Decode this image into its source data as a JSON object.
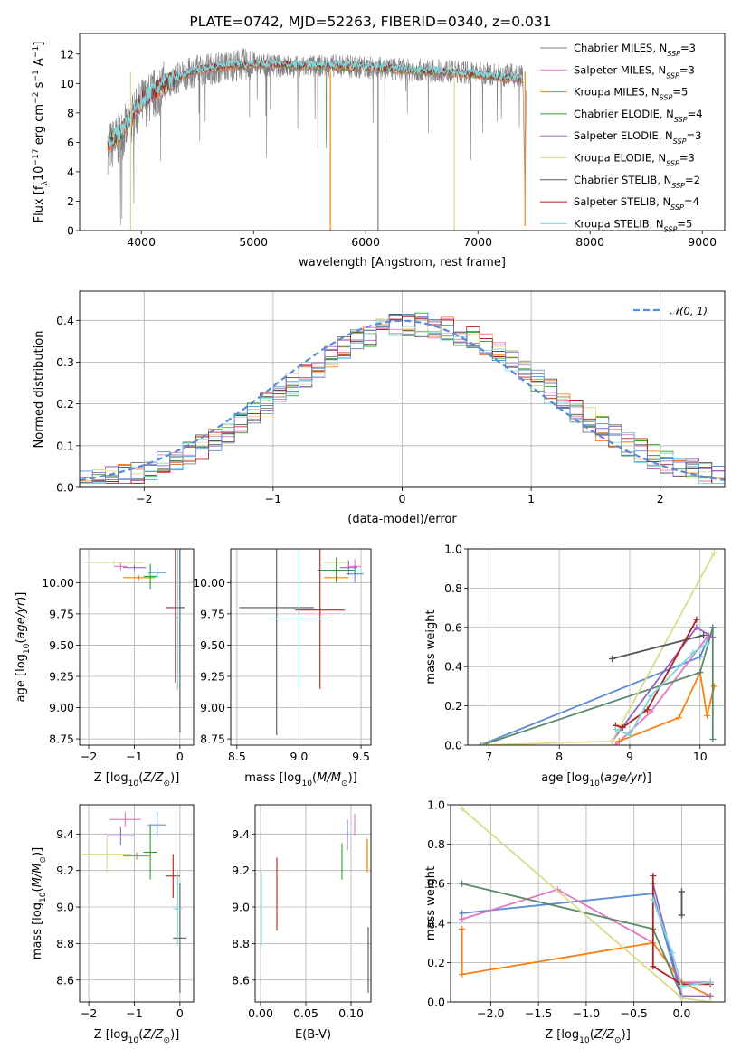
{
  "figure": {
    "title": "PLATE=0742, MJD=52263, FIBERID=0340, z=0.031"
  },
  "series_styles": [
    {
      "name": "Chabrier MILES",
      "n_ssp": "3",
      "color": "#7f7f7f"
    },
    {
      "name": "Salpeter MILES",
      "n_ssp": "3",
      "color": "#e377c2"
    },
    {
      "name": "Kroupa MILES",
      "n_ssp": "5",
      "color": "#ff7f0e"
    },
    {
      "name": "Chabrier ELODIE",
      "n_ssp": "4",
      "color": "#2ca02c"
    },
    {
      "name": "Salpeter ELODIE",
      "n_ssp": "3",
      "color": "#9467bd"
    },
    {
      "name": "Kroupa ELODIE",
      "n_ssp": "3",
      "color": "#dbdb8d"
    },
    {
      "name": "Chabrier STELIB",
      "n_ssp": "2",
      "color": "#555555"
    },
    {
      "name": "Salpeter STELIB",
      "n_ssp": "4",
      "color": "#b22222"
    },
    {
      "name": "Kroupa STELIB",
      "n_ssp": "5",
      "color": "#7fd6dc"
    }
  ],
  "chart_data": [
    {
      "id": "spectrum",
      "type": "line",
      "title": "PLATE=0742, MJD=52263, FIBERID=0340, z=0.031",
      "xlabel": "wavelength [Angstrom, rest frame]",
      "ylabel": "Flux [f_λ 10^-17 erg cm^-2 s^-1 A^-1]",
      "xlim": [
        3450,
        9200
      ],
      "ylim": [
        0,
        13.4
      ],
      "xticks": [
        "4000",
        "5000",
        "6000",
        "7000",
        "8000",
        "9000"
      ],
      "yticks": [
        "0",
        "2",
        "4",
        "6",
        "8",
        "10",
        "12"
      ],
      "grid": false,
      "legend_position": "upper-right",
      "observed_spectrum": {
        "color": "#808080",
        "x": [
          3700,
          3800,
          3900,
          4000,
          4100,
          4200,
          4300,
          4400,
          4500,
          4600,
          4700,
          4800,
          4900,
          5000,
          5200,
          5400,
          5600,
          5800,
          6000,
          6200,
          6400,
          6600,
          6800,
          7000,
          7200,
          7400,
          7430
        ],
        "y": [
          5.6,
          6.2,
          7.3,
          8.6,
          9.2,
          9.8,
          10.3,
          10.6,
          10.9,
          11.0,
          11.1,
          11.2,
          11.3,
          11.3,
          11.2,
          11.1,
          11.2,
          11.2,
          11.1,
          11.0,
          10.9,
          10.9,
          10.8,
          10.7,
          10.6,
          10.5,
          2.0
        ]
      },
      "model_spectrum": {
        "color": "#7fd6dc",
        "x": [
          3700,
          3800,
          3900,
          4000,
          4100,
          4200,
          4300,
          4400,
          4500,
          4600,
          4700,
          4800,
          4900,
          5000,
          5200,
          5400,
          5600,
          5800,
          6000,
          6200,
          6400,
          6600,
          6800,
          7000,
          7200,
          7400
        ],
        "y": [
          6.0,
          6.5,
          7.6,
          8.8,
          9.4,
          9.9,
          10.3,
          10.6,
          10.9,
          11.0,
          11.1,
          11.2,
          11.2,
          11.3,
          11.3,
          11.2,
          11.2,
          11.2,
          11.1,
          11.0,
          10.9,
          10.8,
          10.7,
          10.6,
          10.4,
          10.3
        ]
      },
      "spikes": [
        {
          "x": 3905,
          "y": 0.0,
          "color": "#dbdb8d"
        },
        {
          "x": 5685,
          "y": 0.0,
          "color": "#ff7f0e"
        },
        {
          "x": 6110,
          "y": 0.0,
          "color": "#7f7f7f"
        },
        {
          "x": 6790,
          "y": 0.0,
          "color": "#dbdb8d"
        },
        {
          "x": 7420,
          "y": 0.3,
          "color": "#ff7f0e"
        }
      ]
    },
    {
      "id": "residuals",
      "type": "line",
      "xlabel": "(data-model)/error",
      "ylabel": "Normed distribution",
      "xlim": [
        -2.5,
        2.5
      ],
      "ylim": [
        0,
        0.47
      ],
      "xticks": [
        "−2",
        "−1",
        "0",
        "1",
        "2"
      ],
      "yticks": [
        "0.0",
        "0.1",
        "0.2",
        "0.3",
        "0.4"
      ],
      "grid": true,
      "legend_position": "upper-right",
      "legend_label": "𝒩(0, 1)",
      "gaussian": {
        "mean": 0,
        "sigma": 1,
        "color": "#5b8bd6"
      },
      "step_colors": [
        "#7f7f7f",
        "#e377c2",
        "#ff7f0e",
        "#2ca02c",
        "#9467bd",
        "#dbdb8d",
        "#555555",
        "#b22222",
        "#7fd6dc",
        "#5b8bd6"
      ],
      "bin_edges": [
        -2.5,
        -2.4,
        -2.3,
        -2.2,
        -2.1,
        -2.0,
        -1.9,
        -1.8,
        -1.7,
        -1.6,
        -1.5,
        -1.4,
        -1.3,
        -1.2,
        -1.1,
        -1.0,
        -0.9,
        -0.8,
        -0.7,
        -0.6,
        -0.5,
        -0.4,
        -0.3,
        -0.2,
        -0.1,
        0.0,
        0.1,
        0.2,
        0.3,
        0.4,
        0.5,
        0.6,
        0.7,
        0.8,
        0.9,
        1.0,
        1.1,
        1.2,
        1.3,
        1.4,
        1.5,
        1.6,
        1.7,
        1.8,
        1.9,
        2.0,
        2.1,
        2.2,
        2.3,
        2.4,
        2.5
      ]
    },
    {
      "id": "age_vs_Z",
      "type": "scatter",
      "xlabel": "Z [log10(Z/Z⊙)]",
      "ylabel": "age [log10(age/yr)]",
      "xlim": [
        -2.2,
        0.3
      ],
      "ylim": [
        8.7,
        10.27
      ],
      "xticks": [
        "−2",
        "−1",
        "0"
      ],
      "yticks": [
        "8.75",
        "9.00",
        "9.25",
        "9.50",
        "9.75",
        "10.00"
      ],
      "grid": true,
      "points": [
        {
          "x": -1.45,
          "y": 10.16,
          "xerr": 0.65,
          "yerr": 0.02,
          "color": "#dbdb8d"
        },
        {
          "x": -1.3,
          "y": 10.13,
          "xerr": 0.15,
          "yerr": 0.03,
          "color": "#e377c2"
        },
        {
          "x": -1.0,
          "y": 10.12,
          "xerr": 0.25,
          "yerr": 0.02,
          "color": "#9467bd"
        },
        {
          "x": -0.9,
          "y": 10.04,
          "xerr": 0.35,
          "yerr": 0.02,
          "color": "#ff7f0e"
        },
        {
          "x": -0.65,
          "y": 10.05,
          "xerr": 0.15,
          "yerr": 0.1,
          "color": "#2ca02c"
        },
        {
          "x": -0.5,
          "y": 10.08,
          "xerr": 0.2,
          "yerr": 0.04,
          "color": "#5b8bd6"
        },
        {
          "x": -0.1,
          "y": 9.8,
          "xerr": 0.2,
          "yerr": 0.6,
          "color": "#b22222"
        },
        {
          "x": 0.0,
          "y": 9.8,
          "xerr": 0.1,
          "yerr": 1.0,
          "color": "#555555"
        },
        {
          "x": -0.05,
          "y": 9.72,
          "xerr": 0.05,
          "yerr": 0.58,
          "color": "#7fd6dc"
        }
      ]
    },
    {
      "id": "age_vs_mass",
      "type": "scatter",
      "xlabel": "mass [log10(M/M⊙)]",
      "ylabel": "",
      "xlim": [
        8.45,
        9.58
      ],
      "ylim": [
        8.7,
        10.27
      ],
      "xticks": [
        "8.5",
        "9.0",
        "9.5"
      ],
      "yticks": [
        "8.75",
        "9.00",
        "9.25",
        "9.50",
        "9.75",
        "10.00"
      ],
      "grid": true,
      "points": [
        {
          "x": 9.3,
          "y": 10.16,
          "xerr": 0.1,
          "yerr": 0.02,
          "color": "#dbdb8d"
        },
        {
          "x": 9.45,
          "y": 10.13,
          "xerr": 0.05,
          "yerr": 0.06,
          "color": "#e377c2"
        },
        {
          "x": 9.4,
          "y": 10.12,
          "xerr": 0.07,
          "yerr": 0.06,
          "color": "#9467bd"
        },
        {
          "x": 9.3,
          "y": 10.04,
          "xerr": 0.1,
          "yerr": 0.04,
          "color": "#ff7f0e"
        },
        {
          "x": 9.3,
          "y": 10.1,
          "xerr": 0.15,
          "yerr": 0.1,
          "color": "#2ca02c"
        },
        {
          "x": 9.45,
          "y": 10.07,
          "xerr": 0.07,
          "yerr": 0.07,
          "color": "#5b8bd6"
        },
        {
          "x": 9.17,
          "y": 9.78,
          "xerr": 0.2,
          "yerr": 0.63,
          "color": "#b22222"
        },
        {
          "x": 8.82,
          "y": 9.8,
          "xerr": 0.3,
          "yerr": 1.02,
          "color": "#555555"
        },
        {
          "x": 9.0,
          "y": 9.71,
          "xerr": 0.25,
          "yerr": 0.57,
          "color": "#7fd6dc"
        }
      ]
    },
    {
      "id": "weight_vs_age",
      "type": "line",
      "xlabel": "age [log10(age/yr)]",
      "ylabel": "mass weight",
      "xlim": [
        6.7,
        10.35
      ],
      "ylim": [
        0,
        1
      ],
      "xticks": [
        "7",
        "8",
        "9",
        "10"
      ],
      "yticks": [
        "0.0",
        "0.2",
        "0.4",
        "0.6",
        "0.8",
        "1.0"
      ],
      "grid": true,
      "series": [
        {
          "color": "#5b8bd6",
          "x": [
            6.88,
            10.0,
            10.12
          ],
          "y": [
            0.0,
            0.45,
            0.55
          ]
        },
        {
          "color": "#e377c2",
          "x": [
            8.8,
            9.3,
            10.12
          ],
          "y": [
            0.0,
            0.17,
            0.56
          ]
        },
        {
          "color": "#ff7f0e",
          "x": [
            8.85,
            9.7,
            10.0,
            10.1,
            10.2
          ],
          "y": [
            0.02,
            0.14,
            0.37,
            0.15,
            0.3
          ]
        },
        {
          "color": "#5a8a6a",
          "x": [
            6.9,
            10.0,
            10.18,
            10.18
          ],
          "y": [
            0.0,
            0.37,
            0.6,
            0.03
          ]
        },
        {
          "color": "#9467bd",
          "x": [
            8.75,
            9.95,
            10.18
          ],
          "y": [
            0.02,
            0.6,
            0.55
          ]
        },
        {
          "color": "#dbdb8d",
          "x": [
            6.9,
            8.75,
            10.2
          ],
          "y": [
            0.0,
            0.02,
            0.98
          ]
        },
        {
          "color": "#555555",
          "x": [
            8.75,
            10.05
          ],
          "y": [
            0.44,
            0.56
          ]
        },
        {
          "color": "#b22222",
          "x": [
            8.8,
            8.9,
            9.25,
            9.95
          ],
          "y": [
            0.1,
            0.09,
            0.18,
            0.64
          ]
        },
        {
          "color": "#7fd6dc",
          "x": [
            8.8,
            9.0,
            9.3,
            9.9,
            10.1
          ],
          "y": [
            0.08,
            0.05,
            0.25,
            0.47,
            0.52
          ]
        }
      ]
    },
    {
      "id": "mass_vs_Z",
      "type": "scatter",
      "xlabel": "Z [log10(Z/Z⊙)]",
      "ylabel": "mass [log10(M/M⊙)]",
      "xlim": [
        -2.2,
        0.3
      ],
      "ylim": [
        8.48,
        9.56
      ],
      "xticks": [
        "−2",
        "−1",
        "0"
      ],
      "yticks": [
        "8.6",
        "8.8",
        "9.0",
        "9.2",
        "9.4"
      ],
      "grid": true,
      "points": [
        {
          "x": -1.6,
          "y": 9.29,
          "xerr": 0.55,
          "yerr": 0.1,
          "color": "#dbdb8d"
        },
        {
          "x": -1.2,
          "y": 9.48,
          "xerr": 0.35,
          "yerr": 0.04,
          "color": "#e377c2"
        },
        {
          "x": -1.3,
          "y": 9.39,
          "xerr": 0.3,
          "yerr": 0.05,
          "color": "#9467bd"
        },
        {
          "x": -0.95,
          "y": 9.28,
          "xerr": 0.3,
          "yerr": 0.02,
          "color": "#ff7f0e"
        },
        {
          "x": -0.65,
          "y": 9.3,
          "xerr": 0.15,
          "yerr": 0.15,
          "color": "#2ca02c"
        },
        {
          "x": -0.5,
          "y": 9.45,
          "xerr": 0.2,
          "yerr": 0.07,
          "color": "#5b8bd6"
        },
        {
          "x": -0.15,
          "y": 9.17,
          "xerr": 0.15,
          "yerr": 0.12,
          "color": "#b22222"
        },
        {
          "x": 0.0,
          "y": 8.83,
          "xerr": 0.15,
          "yerr": 0.3,
          "color": "#555555"
        },
        {
          "x": -0.05,
          "y": 8.99,
          "xerr": 0.1,
          "yerr": 0.2,
          "color": "#7fd6dc"
        }
      ]
    },
    {
      "id": "mass_vs_ebv",
      "type": "scatter",
      "xlabel": "E(B-V)",
      "ylabel": "",
      "xlim": [
        -0.006,
        0.122
      ],
      "ylim": [
        8.48,
        9.56
      ],
      "xticks": [
        "0.00",
        "0.05",
        "0.10"
      ],
      "yticks": [
        "8.6",
        "8.8",
        "9.0",
        "9.2",
        "9.4"
      ],
      "grid": true,
      "points": [
        {
          "x": 0.117,
          "y": 9.29,
          "xerr": 0.0,
          "yerr": 0.1,
          "color": "#dbdb8d"
        },
        {
          "x": 0.104,
          "y": 9.45,
          "xerr": 0.0,
          "yerr": 0.06,
          "color": "#e377c2"
        },
        {
          "x": 0.096,
          "y": 9.39,
          "xerr": 0.0,
          "yerr": 0.08,
          "color": "#9467bd"
        },
        {
          "x": 0.118,
          "y": 9.28,
          "xerr": 0.0,
          "yerr": 0.09,
          "color": "#ff7f0e"
        },
        {
          "x": 0.09,
          "y": 9.25,
          "xerr": 0.0,
          "yerr": 0.1,
          "color": "#2ca02c"
        },
        {
          "x": 0.096,
          "y": 9.43,
          "xerr": 0.0,
          "yerr": 0.05,
          "color": "#5b8bd6"
        },
        {
          "x": 0.018,
          "y": 9.07,
          "xerr": 0.0,
          "yerr": 0.2,
          "color": "#b22222"
        },
        {
          "x": 0.119,
          "y": 8.71,
          "xerr": 0.0,
          "yerr": 0.18,
          "color": "#555555"
        },
        {
          "x": 0.001,
          "y": 8.99,
          "xerr": 0.0,
          "yerr": 0.2,
          "color": "#7fd6dc"
        }
      ]
    },
    {
      "id": "weight_vs_Z",
      "type": "line",
      "xlabel": "Z [log10(Z/Z⊙)]",
      "ylabel": "mass weight",
      "xlim": [
        -2.42,
        0.45
      ],
      "ylim": [
        0,
        1
      ],
      "xticks": [
        "−2.0",
        "−1.5",
        "−1.0",
        "−0.5",
        "0.0"
      ],
      "yticks": [
        "0.0",
        "0.2",
        "0.4",
        "0.6",
        "0.8",
        "1.0"
      ],
      "grid": true,
      "series": [
        {
          "color": "#5b8bd6",
          "x": [
            -2.3,
            -0.3,
            0.0
          ],
          "y": [
            0.45,
            0.55,
            0.02
          ]
        },
        {
          "color": "#e377c2",
          "x": [
            -2.3,
            -1.3,
            -0.3,
            0.0,
            0.3
          ],
          "y": [
            0.42,
            0.57,
            0.3,
            0.1,
            0.1
          ]
        },
        {
          "color": "#ff7f0e",
          "x": [
            -2.3,
            -2.3,
            -0.3,
            0.0,
            0.3
          ],
          "y": [
            0.37,
            0.14,
            0.3,
            0.1,
            0.03
          ]
        },
        {
          "color": "#5a8a6a",
          "x": [
            -2.3,
            -0.3,
            0.0,
            0.0
          ],
          "y": [
            0.6,
            0.37,
            0.03,
            0.03
          ]
        },
        {
          "color": "#9467bd",
          "x": [
            -0.3,
            0.0,
            0.3
          ],
          "y": [
            0.6,
            0.03,
            0.03
          ]
        },
        {
          "color": "#dbdb8d",
          "x": [
            -2.3,
            0.0,
            0.3
          ],
          "y": [
            0.98,
            0.02,
            0.0
          ]
        },
        {
          "color": "#555555",
          "x": [
            0.0,
            0.0
          ],
          "y": [
            0.44,
            0.56
          ]
        },
        {
          "color": "#b22222",
          "x": [
            -0.3,
            -0.3,
            0.0,
            0.3
          ],
          "y": [
            0.64,
            0.18,
            0.09,
            0.09
          ]
        },
        {
          "color": "#7fd6dc",
          "x": [
            -0.3,
            -0.1,
            0.0,
            0.3
          ],
          "y": [
            0.52,
            0.25,
            0.08,
            0.1
          ]
        }
      ]
    }
  ]
}
